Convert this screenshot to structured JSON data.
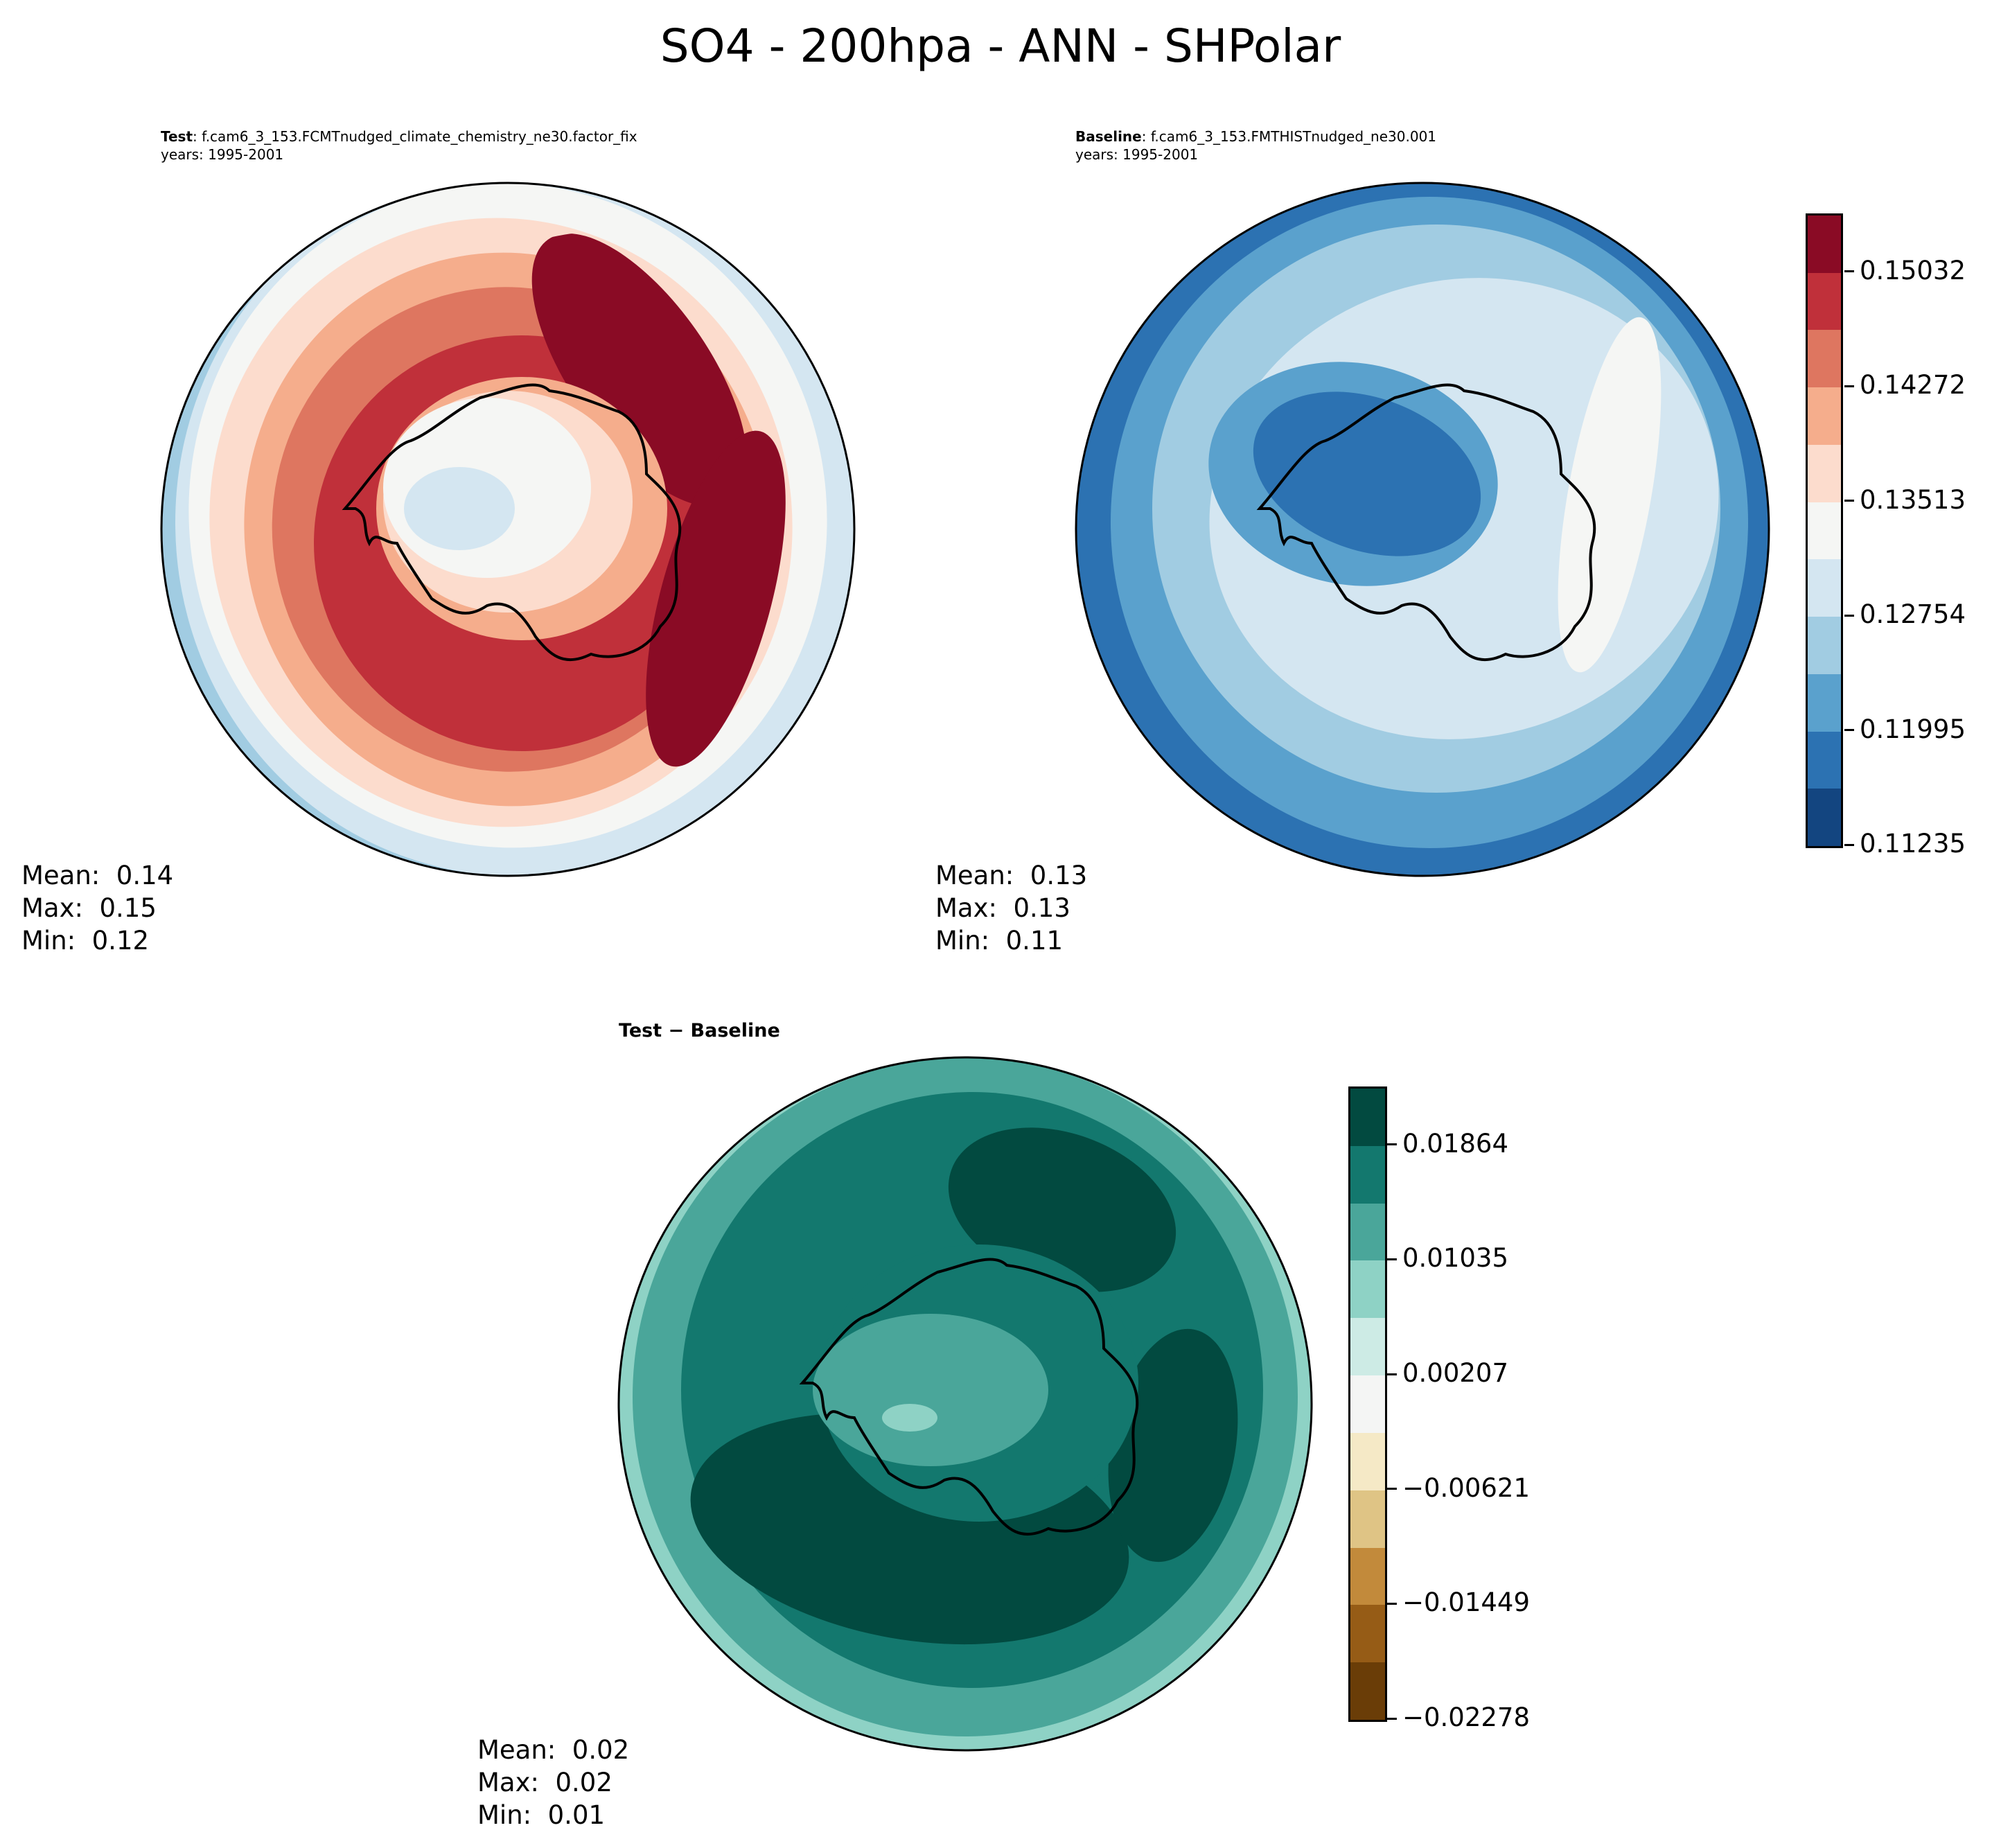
{
  "title": "SO4 - 200hpa - ANN - SHPolar",
  "panels": {
    "test": {
      "label": "Test",
      "case": ": f.cam6_3_153.FCMTnudged_climate_chemistry_ne30.factor_fix",
      "years": "years: 1995-2001",
      "mean": "Mean:  0.14",
      "max": "Max:  0.15",
      "min": "Min:  0.12"
    },
    "baseline": {
      "label": "Baseline",
      "case": ": f.cam6_3_153.FMTHISTnudged_ne30.001",
      "years": "years: 1995-2001",
      "mean": "Mean:  0.13",
      "max": "Max:  0.13",
      "min": "Min:  0.11"
    },
    "diff": {
      "label": "Test − Baseline",
      "mean": "Mean:  0.02",
      "max": "Max:  0.02",
      "min": "Min:  0.01"
    }
  },
  "chart_data": [
    {
      "type": "heatmap",
      "projection": "south-polar-stereographic",
      "title": "Test",
      "colormap": "RdBu_r",
      "colorbar": {
        "ticks": [
          "0.15032",
          "0.14272",
          "0.13513",
          "0.12754",
          "0.11995",
          "0.11235"
        ],
        "range": [
          0.11235,
          0.15412
        ],
        "levels": 11,
        "colors": [
          "#8a0b25",
          "#c0303a",
          "#de7660",
          "#f5ad8c",
          "#fcdccd",
          "#f5f6f4",
          "#d4e6f1",
          "#a1cce2",
          "#5aa1cd",
          "#2c72b2",
          "#134580"
        ]
      }
    },
    {
      "type": "heatmap",
      "projection": "south-polar-stereographic",
      "title": "Baseline"
    },
    {
      "type": "heatmap",
      "projection": "south-polar-stereographic",
      "title": "Test − Baseline",
      "colormap": "BrBG",
      "colorbar": {
        "ticks": [
          "0.01864",
          "0.01035",
          "0.00207",
          "−0.00621",
          "−0.01449",
          "−0.02278"
        ],
        "range": [
          -0.02278,
          0.02278
        ],
        "levels": 11,
        "colors": [
          "#024a40",
          "#13786e",
          "#4aa69a",
          "#8ed2c5",
          "#cdebe5",
          "#f4f5f4",
          "#f5e9c6",
          "#dfc485",
          "#c28a3b",
          "#965c16",
          "#6a3d07"
        ]
      }
    }
  ]
}
